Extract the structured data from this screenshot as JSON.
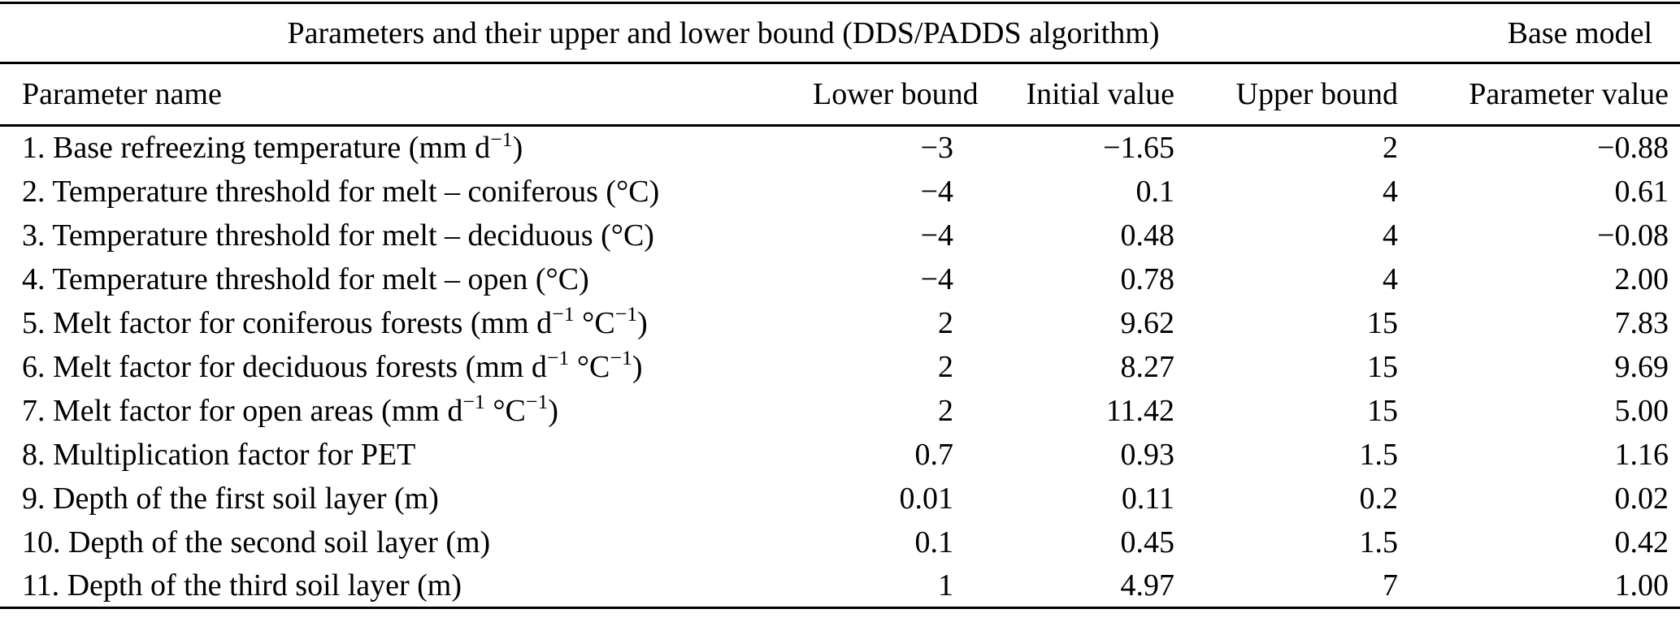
{
  "table": {
    "group_header": {
      "title": "Parameters and their upper and lower bound (DDS/PADDS algorithm)",
      "right_title": "Base model"
    },
    "columns": [
      "Parameter name",
      "Lower bound",
      "Initial value",
      "Upper bound",
      "Parameter value"
    ],
    "rows": [
      {
        "name": "1. Base refreezing temperature (mm d^−1^)",
        "lower": "−3",
        "initial": "−1.65",
        "upper": "2",
        "value": "−0.88"
      },
      {
        "name": "2. Temperature threshold for melt – coniferous (°C)",
        "lower": "−4",
        "initial": "0.1",
        "upper": "4",
        "value": "0.61"
      },
      {
        "name": "3. Temperature threshold for melt – deciduous (°C)",
        "lower": "−4",
        "initial": "0.48",
        "upper": "4",
        "value": "−0.08"
      },
      {
        "name": "4. Temperature threshold for melt – open (°C)",
        "lower": "−4",
        "initial": "0.78",
        "upper": "4",
        "value": "2.00"
      },
      {
        "name": "5. Melt factor for coniferous forests (mm d^−1^ °C^−1^)",
        "lower": "2",
        "initial": "9.62",
        "upper": "15",
        "value": "7.83"
      },
      {
        "name": "6. Melt factor for deciduous forests (mm d^−1^ °C^−1^)",
        "lower": "2",
        "initial": "8.27",
        "upper": "15",
        "value": "9.69"
      },
      {
        "name": "7. Melt factor for open areas (mm d^−1^ °C^−1^)",
        "lower": "2",
        "initial": "11.42",
        "upper": "15",
        "value": "5.00"
      },
      {
        "name": "8. Multiplication factor for PET",
        "lower": "0.7",
        "initial": "0.93",
        "upper": "1.5",
        "value": "1.16"
      },
      {
        "name": "9. Depth of the first soil layer (m)",
        "lower": "0.01",
        "initial": "0.11",
        "upper": "0.2",
        "value": "0.02"
      },
      {
        "name": "10. Depth of the second soil layer (m)",
        "lower": "0.1",
        "initial": "0.45",
        "upper": "1.5",
        "value": "0.42"
      },
      {
        "name": "11. Depth of the third soil layer (m)",
        "lower": "1",
        "initial": "4.97",
        "upper": "7",
        "value": "1.00"
      }
    ]
  },
  "colors": {
    "text": "#000000",
    "rule": "#000000",
    "background": "#ffffff"
  }
}
